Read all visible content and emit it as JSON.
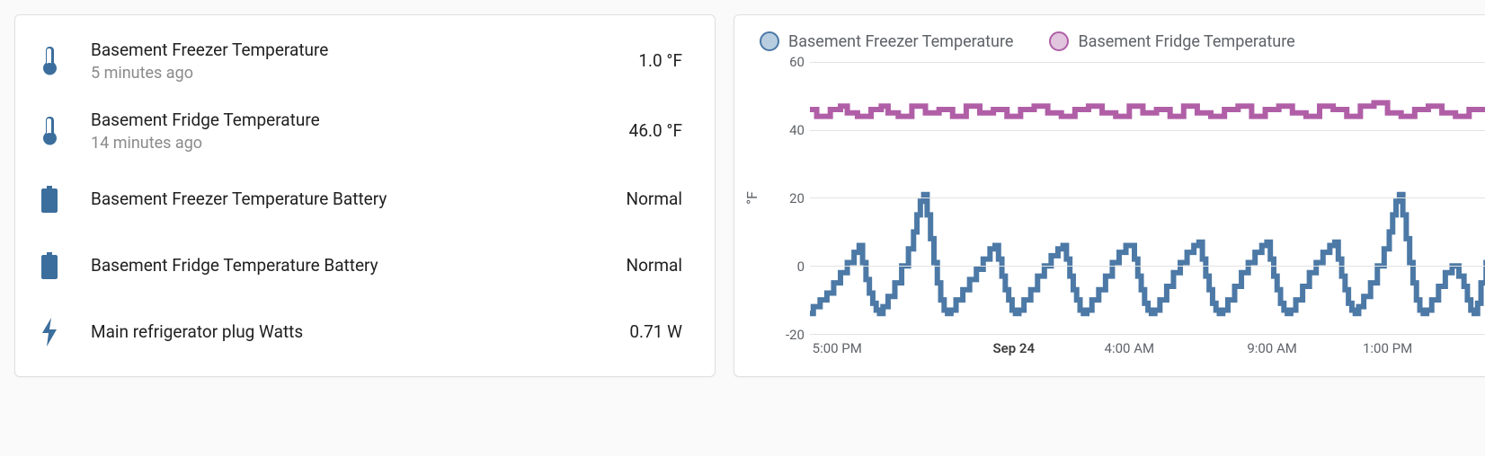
{
  "sensors": {
    "rows": [
      {
        "icon": "thermometer",
        "name": "Basement Freezer Temperature",
        "sub": "5 minutes ago",
        "value": "1.0 °F"
      },
      {
        "icon": "thermometer",
        "name": "Basement Fridge Temperature",
        "sub": "14 minutes ago",
        "value": "46.0 °F"
      },
      {
        "icon": "battery",
        "name": "Basement Freezer Temperature Battery",
        "sub": "",
        "value": "Normal"
      },
      {
        "icon": "battery",
        "name": "Basement Fridge Temperature Battery",
        "sub": "",
        "value": "Normal"
      },
      {
        "icon": "flash",
        "name": "Main refrigerator plug Watts",
        "sub": "",
        "value": "0.71 W"
      }
    ],
    "icon_color": "#3b6e9c"
  },
  "chart": {
    "type": "line",
    "legend": [
      {
        "label": "Basement Freezer Temperature",
        "stroke": "#4c79a6",
        "fill": "#b8cde0"
      },
      {
        "label": "Basement Fridge Temperature",
        "stroke": "#b05fa7",
        "fill": "#e1c5de"
      }
    ],
    "yaxis_label": "°F",
    "ylim": [
      -20,
      60
    ],
    "yticks": [
      -20,
      0,
      20,
      40,
      60
    ],
    "grid_color": "#e3e3e3",
    "axis_color": "#cccccc",
    "background_color": "#ffffff",
    "xticks": [
      {
        "label": "5:00 PM",
        "pos": 0.04,
        "bold": false
      },
      {
        "label": "Sep 24",
        "pos": 0.3,
        "bold": true
      },
      {
        "label": "4:00 AM",
        "pos": 0.47,
        "bold": false
      },
      {
        "label": "9:00 AM",
        "pos": 0.68,
        "bold": false
      },
      {
        "label": "1:00 PM",
        "pos": 0.85,
        "bold": false
      }
    ],
    "series": [
      {
        "name": "freezer",
        "color": "#4c79a6",
        "width": 2,
        "points": [
          [
            0.0,
            -14
          ],
          [
            0.01,
            -12
          ],
          [
            0.02,
            -10
          ],
          [
            0.03,
            -8
          ],
          [
            0.04,
            -5
          ],
          [
            0.05,
            -2
          ],
          [
            0.06,
            1
          ],
          [
            0.07,
            4
          ],
          [
            0.075,
            6
          ],
          [
            0.08,
            1
          ],
          [
            0.085,
            -4
          ],
          [
            0.09,
            -8
          ],
          [
            0.095,
            -11
          ],
          [
            0.1,
            -13
          ],
          [
            0.105,
            -14
          ],
          [
            0.11,
            -12
          ],
          [
            0.12,
            -9
          ],
          [
            0.13,
            -5
          ],
          [
            0.14,
            0
          ],
          [
            0.15,
            5
          ],
          [
            0.155,
            10
          ],
          [
            0.16,
            15
          ],
          [
            0.165,
            19
          ],
          [
            0.17,
            21
          ],
          [
            0.175,
            15
          ],
          [
            0.18,
            8
          ],
          [
            0.185,
            1
          ],
          [
            0.19,
            -5
          ],
          [
            0.195,
            -10
          ],
          [
            0.2,
            -13
          ],
          [
            0.205,
            -14
          ],
          [
            0.21,
            -13
          ],
          [
            0.22,
            -10
          ],
          [
            0.23,
            -7
          ],
          [
            0.24,
            -4
          ],
          [
            0.25,
            -1
          ],
          [
            0.26,
            2
          ],
          [
            0.27,
            5
          ],
          [
            0.275,
            6
          ],
          [
            0.28,
            2
          ],
          [
            0.285,
            -3
          ],
          [
            0.29,
            -7
          ],
          [
            0.295,
            -10
          ],
          [
            0.3,
            -13
          ],
          [
            0.305,
            -14
          ],
          [
            0.31,
            -13
          ],
          [
            0.32,
            -10
          ],
          [
            0.33,
            -7
          ],
          [
            0.34,
            -3
          ],
          [
            0.35,
            0
          ],
          [
            0.36,
            3
          ],
          [
            0.37,
            5
          ],
          [
            0.375,
            6
          ],
          [
            0.38,
            2
          ],
          [
            0.385,
            -3
          ],
          [
            0.39,
            -7
          ],
          [
            0.395,
            -10
          ],
          [
            0.4,
            -13
          ],
          [
            0.405,
            -14
          ],
          [
            0.41,
            -13
          ],
          [
            0.42,
            -10
          ],
          [
            0.43,
            -7
          ],
          [
            0.44,
            -3
          ],
          [
            0.45,
            1
          ],
          [
            0.46,
            4
          ],
          [
            0.47,
            6
          ],
          [
            0.475,
            6
          ],
          [
            0.48,
            2
          ],
          [
            0.485,
            -3
          ],
          [
            0.49,
            -7
          ],
          [
            0.495,
            -11
          ],
          [
            0.5,
            -13
          ],
          [
            0.505,
            -14
          ],
          [
            0.51,
            -13
          ],
          [
            0.52,
            -10
          ],
          [
            0.53,
            -6
          ],
          [
            0.54,
            -2
          ],
          [
            0.55,
            1
          ],
          [
            0.56,
            4
          ],
          [
            0.57,
            6
          ],
          [
            0.575,
            7
          ],
          [
            0.58,
            2
          ],
          [
            0.585,
            -3
          ],
          [
            0.59,
            -7
          ],
          [
            0.595,
            -11
          ],
          [
            0.6,
            -13
          ],
          [
            0.605,
            -14
          ],
          [
            0.61,
            -13
          ],
          [
            0.62,
            -10
          ],
          [
            0.63,
            -6
          ],
          [
            0.64,
            -2
          ],
          [
            0.65,
            1
          ],
          [
            0.66,
            4
          ],
          [
            0.67,
            6
          ],
          [
            0.675,
            7
          ],
          [
            0.68,
            2
          ],
          [
            0.685,
            -3
          ],
          [
            0.69,
            -7
          ],
          [
            0.695,
            -11
          ],
          [
            0.7,
            -13
          ],
          [
            0.705,
            -14
          ],
          [
            0.71,
            -13
          ],
          [
            0.72,
            -10
          ],
          [
            0.73,
            -6
          ],
          [
            0.74,
            -2
          ],
          [
            0.75,
            1
          ],
          [
            0.76,
            4
          ],
          [
            0.77,
            6
          ],
          [
            0.775,
            7
          ],
          [
            0.78,
            2
          ],
          [
            0.785,
            -3
          ],
          [
            0.79,
            -7
          ],
          [
            0.795,
            -11
          ],
          [
            0.8,
            -13
          ],
          [
            0.805,
            -14
          ],
          [
            0.81,
            -12
          ],
          [
            0.82,
            -9
          ],
          [
            0.83,
            -5
          ],
          [
            0.84,
            0
          ],
          [
            0.85,
            5
          ],
          [
            0.855,
            10
          ],
          [
            0.86,
            15
          ],
          [
            0.865,
            19
          ],
          [
            0.87,
            21
          ],
          [
            0.875,
            15
          ],
          [
            0.88,
            8
          ],
          [
            0.885,
            1
          ],
          [
            0.89,
            -5
          ],
          [
            0.895,
            -10
          ],
          [
            0.9,
            -13
          ],
          [
            0.905,
            -14
          ],
          [
            0.91,
            -13
          ],
          [
            0.92,
            -10
          ],
          [
            0.93,
            -6
          ],
          [
            0.94,
            -2
          ],
          [
            0.95,
            0
          ],
          [
            0.96,
            -3
          ],
          [
            0.965,
            -6
          ],
          [
            0.97,
            -10
          ],
          [
            0.975,
            -13
          ],
          [
            0.98,
            -14
          ],
          [
            0.985,
            -11
          ],
          [
            0.99,
            -5
          ],
          [
            1.0,
            1
          ]
        ]
      },
      {
        "name": "fridge",
        "color": "#b05fa7",
        "width": 2,
        "points": [
          [
            0.0,
            46
          ],
          [
            0.02,
            44
          ],
          [
            0.04,
            46
          ],
          [
            0.05,
            47
          ],
          [
            0.06,
            45
          ],
          [
            0.08,
            44
          ],
          [
            0.1,
            46
          ],
          [
            0.11,
            47
          ],
          [
            0.12,
            45
          ],
          [
            0.14,
            44
          ],
          [
            0.16,
            47
          ],
          [
            0.18,
            45
          ],
          [
            0.2,
            46
          ],
          [
            0.22,
            44
          ],
          [
            0.24,
            47
          ],
          [
            0.26,
            45
          ],
          [
            0.28,
            46
          ],
          [
            0.3,
            44
          ],
          [
            0.32,
            46
          ],
          [
            0.34,
            47
          ],
          [
            0.36,
            45
          ],
          [
            0.38,
            44
          ],
          [
            0.4,
            46
          ],
          [
            0.42,
            47
          ],
          [
            0.44,
            45
          ],
          [
            0.46,
            44
          ],
          [
            0.48,
            47
          ],
          [
            0.5,
            45
          ],
          [
            0.52,
            46
          ],
          [
            0.54,
            44
          ],
          [
            0.56,
            47
          ],
          [
            0.58,
            45
          ],
          [
            0.6,
            44
          ],
          [
            0.62,
            46
          ],
          [
            0.64,
            47
          ],
          [
            0.66,
            44
          ],
          [
            0.68,
            46
          ],
          [
            0.7,
            47
          ],
          [
            0.72,
            45
          ],
          [
            0.74,
            44
          ],
          [
            0.76,
            47
          ],
          [
            0.78,
            46
          ],
          [
            0.8,
            44
          ],
          [
            0.82,
            47
          ],
          [
            0.84,
            48
          ],
          [
            0.86,
            45
          ],
          [
            0.88,
            44
          ],
          [
            0.9,
            46
          ],
          [
            0.92,
            47
          ],
          [
            0.94,
            45
          ],
          [
            0.96,
            44
          ],
          [
            0.98,
            46
          ],
          [
            1.0,
            46
          ]
        ]
      }
    ]
  }
}
